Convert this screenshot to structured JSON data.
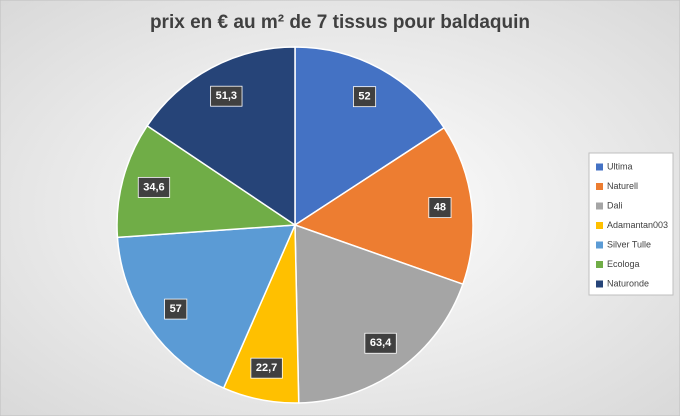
{
  "chart_data": {
    "type": "pie",
    "title": "prix en € au m² de 7 tissus pour baldaquin",
    "categories": [
      "Ultima",
      "Naturell",
      "Dali",
      "Adamantan003",
      "Silver Tulle",
      "Ecologa",
      "Naturonde"
    ],
    "values": [
      52,
      48,
      63.4,
      22.7,
      57,
      34.6,
      51.3
    ],
    "value_labels": [
      "52",
      "48",
      "63,4",
      "22,7",
      "57",
      "34,6",
      "51,3"
    ],
    "colors": [
      "#4472c4",
      "#ed7d31",
      "#a5a5a5",
      "#ffc000",
      "#5b9bd5",
      "#70ad47",
      "#264478"
    ],
    "legend": "right"
  }
}
